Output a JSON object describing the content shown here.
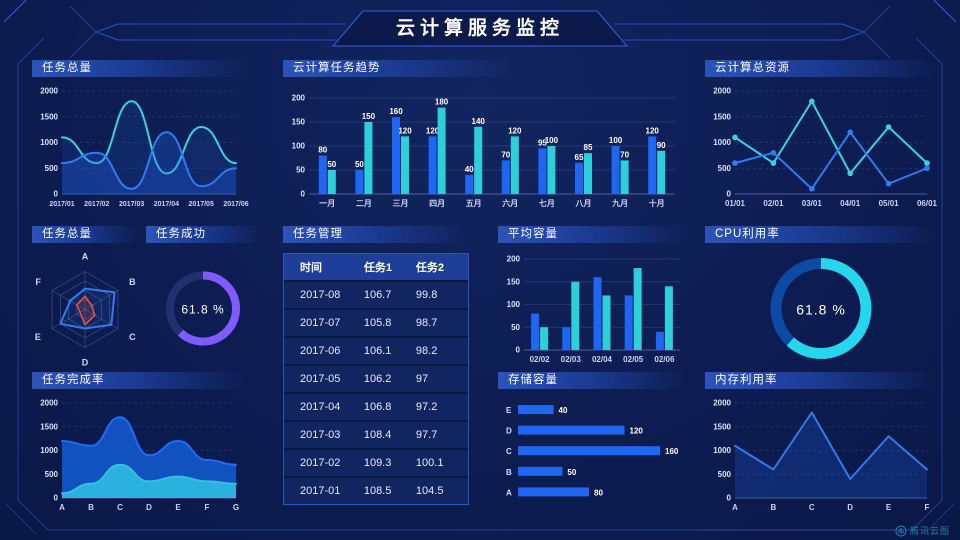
{
  "page": {
    "title": "云计算服务监控",
    "brand": "腾讯云图"
  },
  "colors": {
    "background": "#0d1d52",
    "title_bar": "#2c54b8",
    "blue": "#1f66f2",
    "cyan": "#2bd0da",
    "purple": "#7e5bfa",
    "red": "#f0503c",
    "table_header": "#1d3f9a"
  },
  "panels": {
    "task_total_line": {
      "title": "任务总量"
    },
    "task_trend": {
      "title": "云计算任务趋势"
    },
    "cloud_resource": {
      "title": "云计算总资源"
    },
    "task_radar": {
      "title": "任务总量"
    },
    "task_success": {
      "title": "任务成功"
    },
    "task_table": {
      "title": "任务管理"
    },
    "avg_capacity": {
      "title": "平均容量"
    },
    "cpu": {
      "title": "CPU利用率"
    },
    "task_completion": {
      "title": "任务完成率"
    },
    "storage": {
      "title": "存储容量"
    },
    "memory": {
      "title": "内存利用率"
    }
  },
  "chart_data": [
    {
      "id": "task-total-trend",
      "type": "line",
      "title": "任务总量",
      "smooth": true,
      "grid": "dashed",
      "x": [
        "2017/01",
        "2017/02",
        "2017/03",
        "2017/04",
        "2017/05",
        "2017/06"
      ],
      "ylim": [
        0,
        2000
      ],
      "yticks": [
        0,
        500,
        1000,
        1500,
        2000
      ],
      "xfont": 7,
      "series": [
        {
          "name": "cyan-series",
          "color": "#3bd2de",
          "values": [
            1100,
            600,
            1800,
            400,
            1300,
            600
          ],
          "fill": "#1d4fae",
          "fill_opacity": 0.22
        },
        {
          "name": "blue-series",
          "color": "#2f7bf2",
          "values": [
            600,
            800,
            100,
            1200,
            150,
            500
          ],
          "fill": "#1e62f0",
          "fill_opacity": 0.3
        }
      ]
    },
    {
      "id": "cloud-task-trend",
      "type": "bar",
      "title": "云计算任务趋势",
      "value_labels": true,
      "categories": [
        "一月",
        "二月",
        "三月",
        "四月",
        "五月",
        "六月",
        "七月",
        "八月",
        "九月",
        "十月"
      ],
      "ylim": [
        0,
        200
      ],
      "yticks": [
        0,
        50,
        100,
        150,
        200
      ],
      "series": [
        {
          "name": "任务1",
          "color": "#1f66f2",
          "values": [
            80,
            50,
            160,
            120,
            40,
            70,
            95,
            65,
            100,
            120
          ]
        },
        {
          "name": "任务2",
          "color": "#2bd0da",
          "values": [
            50,
            150,
            120,
            180,
            140,
            120,
            100,
            85,
            70,
            90
          ]
        }
      ]
    },
    {
      "id": "cloud-total-resource",
      "type": "line",
      "title": "云计算总资源",
      "smooth": false,
      "grid": "dashed",
      "x": [
        "01/01",
        "02/01",
        "03/01",
        "04/01",
        "05/01",
        "06/01"
      ],
      "ylim": [
        0,
        2000
      ],
      "yticks": [
        0,
        500,
        1000,
        1500,
        2000
      ],
      "series": [
        {
          "name": "cyan-series",
          "color": "#3bd2de",
          "values": [
            1100,
            600,
            1800,
            400,
            1300,
            600
          ],
          "markers": true
        },
        {
          "name": "blue-series",
          "color": "#2f7bf2",
          "values": [
            600,
            800,
            100,
            1200,
            200,
            500
          ],
          "markers": true
        }
      ]
    },
    {
      "id": "task-total-radar",
      "type": "radar",
      "title": "任务总量",
      "r": 38,
      "max": 100,
      "indicators": [
        "A",
        "B",
        "C",
        "D",
        "E",
        "F"
      ],
      "series": [
        {
          "name": "blue-polygon",
          "color": "#2f7bf2",
          "fill": "rgba(47,123,242,0.12)",
          "values": [
            55,
            90,
            80,
            50,
            75,
            45
          ]
        },
        {
          "name": "red-polygon",
          "color": "#f0503c",
          "fill": "rgba(240,80,60,0.15)",
          "values": [
            35,
            20,
            30,
            40,
            15,
            25
          ]
        }
      ]
    },
    {
      "id": "task-success-gauge",
      "type": "donut",
      "title": "任务成功",
      "value": 61.8,
      "label": "61.8 %",
      "color": "#7e5bfa",
      "track": "#232f6e",
      "r": 33,
      "sw": 8,
      "font": 12
    },
    {
      "id": "avg-capacity",
      "type": "bar",
      "title": "平均容量",
      "value_labels": false,
      "categories": [
        "02/02",
        "02/03",
        "02/04",
        "02/05",
        "02/06"
      ],
      "ylim": [
        0,
        200
      ],
      "yticks": [
        0,
        50,
        100,
        150,
        200
      ],
      "series": [
        {
          "name": "blue-series",
          "color": "#1f66f2",
          "values": [
            80,
            50,
            160,
            120,
            40
          ]
        },
        {
          "name": "cyan-series",
          "color": "#2bd0da",
          "values": [
            50,
            150,
            120,
            180,
            140
          ]
        }
      ]
    },
    {
      "id": "cpu-gauge",
      "type": "donut",
      "title": "CPU利用率",
      "value": 61.8,
      "label": "61.8 %",
      "color": "#25d6ec",
      "track": "#0d4aa4",
      "r": 45,
      "sw": 11,
      "font": 14
    },
    {
      "id": "task-completion",
      "type": "line",
      "title": "任务完成率",
      "smooth": true,
      "grid": "dashed",
      "x": [
        "A",
        "B",
        "C",
        "D",
        "E",
        "F",
        "G"
      ],
      "ylim": [
        0,
        2000
      ],
      "yticks": [
        0,
        500,
        1000,
        1500,
        2000
      ],
      "series": [
        {
          "name": "blue-area",
          "color": "#1e6cf5",
          "values": [
            1200,
            1100,
            1700,
            900,
            1200,
            800,
            700
          ],
          "fill": "#1257c8",
          "fill_opacity": 0.92
        },
        {
          "name": "cyan-area",
          "color": "#35c0e0",
          "values": [
            100,
            300,
            700,
            350,
            450,
            350,
            300
          ],
          "fill": "#2bb1dd",
          "fill_opacity": 1
        }
      ]
    },
    {
      "id": "storage-capacity",
      "type": "hbar",
      "title": "存储容量",
      "max": 160,
      "color": "#1f66f2",
      "rows": [
        {
          "label": "E",
          "value": 40
        },
        {
          "label": "D",
          "value": 120
        },
        {
          "label": "C",
          "value": 160
        },
        {
          "label": "B",
          "value": 50
        },
        {
          "label": "A",
          "value": 80
        }
      ]
    },
    {
      "id": "memory-util",
      "type": "line",
      "title": "内存利用率",
      "smooth": false,
      "grid": "dashed",
      "x": [
        "A",
        "B",
        "C",
        "D",
        "E",
        "F"
      ],
      "ylim": [
        0,
        2000
      ],
      "yticks": [
        0,
        500,
        1000,
        1500,
        2000
      ],
      "series": [
        {
          "name": "blue-series",
          "color": "#2f7bf2",
          "values": [
            1100,
            600,
            1800,
            400,
            1300,
            600
          ],
          "fill": "#1e62f0",
          "fill_opacity": 0.22
        }
      ]
    },
    {
      "id": "task-table",
      "type": "table",
      "title": "任务管理",
      "headers": [
        "时间",
        "任务1",
        "任务2"
      ],
      "rows": [
        [
          "2017-08",
          "106.7",
          "99.8"
        ],
        [
          "2017-07",
          "105.8",
          "98.7"
        ],
        [
          "2017-06",
          "106.1",
          "98.2"
        ],
        [
          "2017-05",
          "106.2",
          "97"
        ],
        [
          "2017-04",
          "106.8",
          "97.2"
        ],
        [
          "2017-03",
          "108.4",
          "97.7"
        ],
        [
          "2017-02",
          "109.3",
          "100.1"
        ],
        [
          "2017-01",
          "108.5",
          "104.5"
        ]
      ]
    }
  ]
}
